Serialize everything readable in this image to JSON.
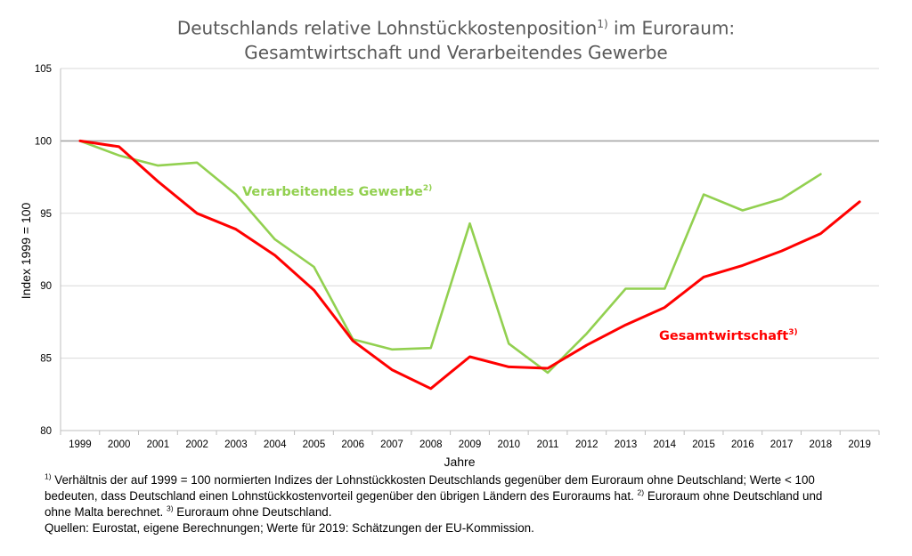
{
  "title": {
    "line1_pre": "Deutschlands relative Lohnstückkostenposition",
    "line1_sup": "1)",
    "line1_post": " im Euroraum:",
    "line2": "Gesamtwirtschaft und Verarbeitendes Gewerbe"
  },
  "chart_data": {
    "type": "line",
    "x": [
      "1999",
      "2000",
      "2001",
      "2002",
      "2003",
      "2004",
      "2005",
      "2006",
      "2007",
      "2008",
      "2009",
      "2010",
      "2011",
      "2012",
      "2013",
      "2014",
      "2015",
      "2016",
      "2017",
      "2018",
      "2019"
    ],
    "xlabel": "Jahre",
    "ylabel": "Index 1999 = 100",
    "ylim": [
      80,
      105
    ],
    "yticks": [
      80,
      85,
      90,
      95,
      100,
      105
    ],
    "grid": "horizontal",
    "reference_line": 100,
    "reference_color": "#a6a6a6",
    "series": [
      {
        "name": "Verarbeitendes Gewerbe",
        "label_sup": "2)",
        "color": "#92d050",
        "values": [
          100,
          99.0,
          98.3,
          98.5,
          96.3,
          93.2,
          91.3,
          86.3,
          85.6,
          85.7,
          94.3,
          86.0,
          84.0,
          86.7,
          89.8,
          89.8,
          96.3,
          95.2,
          96.0,
          97.7,
          null
        ]
      },
      {
        "name": "Gesamtwirtschaft",
        "label_sup": "3)",
        "color": "#ff0000",
        "values": [
          100,
          99.6,
          97.2,
          95.0,
          93.9,
          92.1,
          89.7,
          86.2,
          84.2,
          82.9,
          85.1,
          84.4,
          84.3,
          85.9,
          87.3,
          88.5,
          90.6,
          91.4,
          92.4,
          93.6,
          95.8
        ]
      }
    ]
  },
  "footnotes": {
    "l1_sup": "1)",
    "l1": " Verhältnis der auf 1999 = 100 normierten Indizes der Lohnstückkosten Deutschlands gegenüber dem Euroraum ohne Deutschland; Werte < 100",
    "l2a": "bedeuten, dass Deutschland einen Lohnstückkostenvorteil gegenüber den übrigen Ländern des Euroraums hat. ",
    "l2_sup": "2)",
    "l2b": " Euroraum ohne Deutschland und",
    "l3a": "ohne Malta berechnet. ",
    "l3_sup": "3)",
    "l3b": " Euroraum ohne Deutschland.",
    "l4": "Quellen: Eurostat, eigene Berechnungen; Werte für 2019: Schätzungen der EU-Kommission."
  }
}
